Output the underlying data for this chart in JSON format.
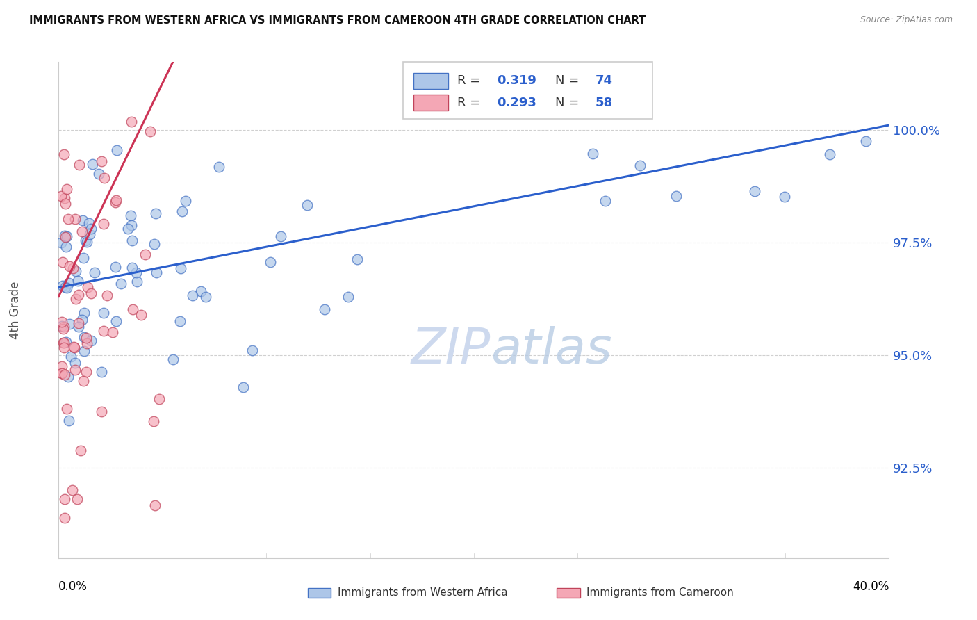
{
  "title": "IMMIGRANTS FROM WESTERN AFRICA VS IMMIGRANTS FROM CAMEROON 4TH GRADE CORRELATION CHART",
  "source": "Source: ZipAtlas.com",
  "ylabel": "4th Grade",
  "ytick_values": [
    92.5,
    95.0,
    97.5,
    100.0
  ],
  "xlim": [
    0.0,
    40.0
  ],
  "ylim": [
    90.5,
    101.5
  ],
  "legend1_r": "0.319",
  "legend1_n": "74",
  "legend2_r": "0.293",
  "legend2_n": "58",
  "blue_fill": "#adc6e8",
  "blue_edge": "#4472c4",
  "pink_fill": "#f4a7b5",
  "pink_edge": "#c0435a",
  "blue_line": "#2b5fcc",
  "pink_line": "#cc3355",
  "grid_color": "#d0d0d0",
  "tick_color": "#2b5fcc",
  "watermark_color": "#cdd9ee"
}
